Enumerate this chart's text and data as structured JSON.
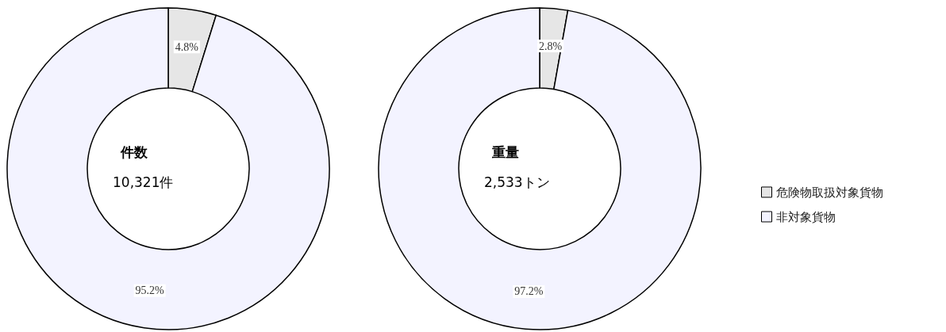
{
  "chart_data": {
    "type": "donut",
    "categories": [
      "危険物取扱対象貨物",
      "非対象貨物"
    ],
    "colors": [
      "#e6e6e6",
      "#f3f3ff"
    ],
    "legend": "right",
    "series": [
      {
        "name": "件数",
        "values": [
          4.8,
          95.2
        ],
        "value_labels": [
          "4.8%",
          "95.2%"
        ]
      },
      {
        "name": "重量",
        "values": [
          2.8,
          97.2
        ],
        "value_labels": [
          "2.8%",
          "97.2%"
        ]
      }
    ],
    "annotations": [
      "10,321件",
      "2,533トン"
    ]
  }
}
